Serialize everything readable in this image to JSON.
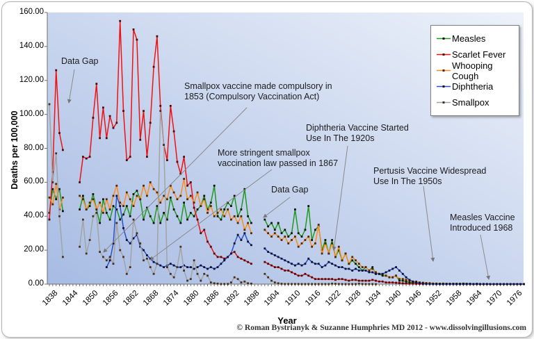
{
  "footer": {
    "copyright": "© Roman Bystrianyk & Suzanne Humphries MD 2012 - www.dissolvingillusions.com"
  },
  "chart_data": {
    "type": "line",
    "title": "",
    "xlabel": "Year",
    "ylabel": "Deaths per 100,000",
    "x_start": 1838,
    "x_end": 1978,
    "ylim": [
      0,
      160
    ],
    "y_tick_step": 20,
    "y_tick_labels": [
      "0.00",
      "20.00",
      "40.00",
      "60.00",
      "80.00",
      "100.00",
      "120.00",
      "140.00",
      "160.00"
    ],
    "x_tick_labels": [
      "1838",
      "1844",
      "1850",
      "1856",
      "1862",
      "1868",
      "1874",
      "1880",
      "1886",
      "1892",
      "1898",
      "1904",
      "1910",
      "1916",
      "1922",
      "1928",
      "1934",
      "1940",
      "1946",
      "1952",
      "1958",
      "1964",
      "1970",
      "1976"
    ],
    "grid": false,
    "legend_position": "top-right",
    "plot_bg_gradient": [
      "#a7bbe3",
      "#edf2fa"
    ],
    "series": [
      {
        "name": "Measles",
        "color": "#1f9a1f",
        "marker_color": "#101010",
        "values": [
          42,
          56,
          50,
          56,
          43,
          null,
          null,
          null,
          null,
          44,
          52,
          44,
          46,
          53,
          44,
          36,
          50,
          42,
          38,
          46,
          44,
          38,
          41,
          46,
          40,
          53,
          55,
          50,
          38,
          45,
          40,
          36,
          46,
          36,
          42,
          38,
          51,
          44,
          40,
          36,
          48,
          38,
          42,
          40,
          44,
          46,
          52,
          44,
          48,
          58,
          40,
          38,
          44,
          48,
          46,
          52,
          40,
          44,
          56,
          40,
          36,
          null,
          null,
          null,
          38,
          34,
          36,
          32,
          36,
          30,
          32,
          28,
          30,
          44,
          30,
          28,
          32,
          46,
          26,
          32,
          34,
          20,
          26,
          18,
          26,
          16,
          20,
          14,
          18,
          12,
          14,
          12,
          10,
          8,
          10,
          8,
          10,
          6,
          6,
          5,
          5,
          4,
          4,
          5,
          2,
          2,
          1.5,
          1,
          1,
          1,
          0.8,
          0.5,
          0.4,
          0.5,
          0.3,
          0.3,
          0.2,
          0.3,
          0.2,
          0.2,
          0.2,
          0.2,
          0.2,
          0.3,
          0.2,
          0.2,
          0.1,
          0.2,
          0.1,
          0.1,
          0.1,
          0.05,
          0.05,
          0.05,
          0.05,
          0.05,
          0.05,
          0.05,
          0.05,
          0.05,
          0.05
        ]
      },
      {
        "name": "Scarlet Fever",
        "color": "#f01111",
        "marker_color": "#4a0d0d",
        "values": [
          38,
          66,
          126,
          89,
          79,
          null,
          null,
          null,
          null,
          60,
          75,
          74,
          75,
          98,
          118,
          86,
          104,
          86,
          99,
          92,
          95,
          155,
          102,
          73,
          75,
          150,
          144,
          85,
          102,
          75,
          95,
          128,
          146,
          105,
          82,
          73,
          105,
          90,
          72,
          65,
          75,
          58,
          60,
          45,
          38,
          30,
          32,
          25,
          22,
          18,
          16,
          16,
          15,
          16,
          18,
          19,
          16,
          15,
          14,
          13,
          12,
          null,
          null,
          null,
          13,
          12,
          11,
          10,
          10,
          9,
          8,
          8,
          7,
          6,
          5,
          5,
          6,
          5,
          4,
          3,
          3,
          3,
          3,
          3,
          3,
          2.5,
          3,
          3,
          2.5,
          2,
          2.5,
          2.5,
          2,
          2,
          2,
          2,
          2.5,
          2,
          1.5,
          1.5,
          1,
          1,
          1,
          0.8,
          0.6,
          0.5,
          0.4,
          0.3,
          0.3,
          0.2,
          0.2,
          0.1,
          0.1,
          0.1,
          0.1,
          0.05,
          0.05,
          0.05,
          0.05,
          0.05,
          0.05,
          0.05,
          0.05,
          0.05,
          0.05,
          0,
          0,
          0,
          0,
          0,
          0,
          0,
          0,
          0,
          0,
          0,
          0,
          0,
          0,
          0,
          0,
          0
        ]
      },
      {
        "name": "Whooping Cough",
        "color": "#ff8c1a",
        "marker_color": "#4a2a08",
        "values": [
          51,
          47,
          59,
          44,
          51,
          null,
          null,
          null,
          null,
          52,
          50,
          44,
          48,
          50,
          44,
          48,
          42,
          50,
          44,
          52,
          58,
          48,
          46,
          54,
          50,
          46,
          52,
          50,
          58,
          52,
          60,
          56,
          54,
          48,
          52,
          50,
          58,
          54,
          50,
          52,
          62,
          50,
          52,
          48,
          54,
          46,
          50,
          42,
          46,
          40,
          42,
          44,
          40,
          44,
          38,
          40,
          36,
          40,
          32,
          36,
          30,
          null,
          null,
          null,
          32,
          30,
          28,
          30,
          28,
          26,
          28,
          24,
          26,
          28,
          22,
          24,
          26,
          28,
          22,
          24,
          35,
          18,
          24,
          18,
          24,
          16,
          22,
          14,
          18,
          12,
          16,
          14,
          12,
          10,
          10,
          8,
          9,
          7,
          6,
          6,
          5,
          4,
          4,
          5,
          3,
          3,
          2.5,
          2,
          1.5,
          1.5,
          1,
          0.8,
          0.6,
          0.5,
          0.3,
          0.3,
          0.2,
          0.2,
          0.1,
          0.1,
          0.1,
          0.05,
          0.05,
          0.05,
          0.05,
          0.05,
          0.05,
          0.05,
          0.05,
          0.05,
          0.05,
          0.05,
          0,
          0,
          0,
          0,
          0,
          0,
          0,
          0,
          0
        ]
      },
      {
        "name": "Diphtheria",
        "color": "#2a50cc",
        "marker_color": "#101028",
        "values": [
          null,
          null,
          null,
          null,
          null,
          null,
          null,
          null,
          null,
          null,
          null,
          null,
          null,
          null,
          null,
          null,
          null,
          10,
          14,
          24,
          52,
          46,
          33,
          26,
          24,
          27,
          29,
          22,
          20,
          17,
          15,
          13,
          12,
          11,
          10,
          11,
          12,
          11,
          10,
          10,
          11,
          10,
          10,
          9,
          10,
          11,
          10,
          9,
          10,
          9,
          10,
          12,
          14,
          16,
          18,
          24,
          29,
          26,
          30,
          25,
          23,
          null,
          null,
          null,
          21,
          19,
          18,
          17,
          16,
          15,
          14,
          13,
          12,
          11,
          12,
          11,
          12,
          15,
          13,
          12,
          12,
          10,
          11,
          13,
          12,
          11,
          10,
          10,
          9,
          9,
          8,
          9,
          8,
          8,
          8,
          7,
          7,
          6,
          6,
          6,
          7,
          8,
          9,
          10,
          8,
          6,
          4,
          2.5,
          1.5,
          1,
          0.6,
          0.4,
          0.2,
          0.1,
          0.1,
          0.05,
          0.05,
          0.05,
          0.05,
          0.05,
          0.05,
          0.05,
          0.05,
          0.05,
          0.05,
          0.05,
          0.05,
          0.05,
          0.05,
          0.05,
          0.05,
          0.05,
          0.05,
          0.05,
          0.05,
          0.05,
          0.05,
          0.05,
          0.05,
          0.05,
          0.05,
          0.05
        ]
      },
      {
        "name": "Smallpox",
        "color": "#a3a3a3",
        "marker_color": "#46301c",
        "values": [
          106,
          60,
          77,
          40,
          16,
          null,
          null,
          null,
          null,
          22,
          38,
          18,
          26,
          40,
          42,
          19,
          16,
          14,
          16,
          12,
          36,
          20,
          16,
          6,
          10,
          38,
          30,
          24,
          14,
          15,
          10,
          6,
          12,
          102,
          82,
          10,
          6,
          4,
          10,
          22,
          8,
          2,
          3,
          14,
          6,
          2,
          6,
          5,
          1,
          0.5,
          0.3,
          0.1,
          0.1,
          0.1,
          1,
          4,
          3,
          1,
          1.5,
          0.5,
          0.3,
          null,
          null,
          null,
          6,
          4,
          2,
          1,
          0.5,
          0.2,
          0.1,
          0.1,
          0.1,
          0.1,
          0.1,
          0.05,
          0.05,
          0.05,
          0.05,
          0.05,
          0.05,
          0.05,
          0.05,
          0.05,
          0.3,
          0.2,
          0.1,
          0.05,
          0.05,
          0.05,
          0.05,
          0.05,
          0.3,
          0.1,
          0.05,
          0.05,
          0.05,
          0,
          null,
          null,
          null,
          null,
          null,
          null,
          null,
          null,
          null,
          null,
          null,
          null,
          null,
          null,
          null,
          null,
          null,
          null,
          null,
          null,
          null,
          null,
          null,
          null,
          null,
          null,
          null,
          null,
          null,
          null,
          null,
          null,
          null,
          null,
          null,
          null,
          null,
          null,
          null,
          null,
          null,
          null,
          null
        ]
      }
    ],
    "annotations": [
      {
        "id": "data-gap-1",
        "lines": [
          "Data Gap"
        ]
      },
      {
        "id": "smallpox-1853",
        "lines": [
          "Smallpox vaccine made compulsory in",
          "1853 (Compulsory Vaccination Act)"
        ]
      },
      {
        "id": "smallpox-1867",
        "lines": [
          "More stringent smallpox",
          "vaccination law passed in 1867"
        ]
      },
      {
        "id": "data-gap-2",
        "lines": [
          "Data Gap"
        ]
      },
      {
        "id": "diphtheria-1920s",
        "lines": [
          "Diphtheria Vaccine Started",
          "Use In The 1920s"
        ]
      },
      {
        "id": "pertussis-1950s",
        "lines": [
          "Pertusis Vaccine Widespread",
          "Use In The 1950s"
        ]
      },
      {
        "id": "measles-1968",
        "lines": [
          "Measles Vaccine",
          "Introduced 1968"
        ]
      }
    ]
  }
}
